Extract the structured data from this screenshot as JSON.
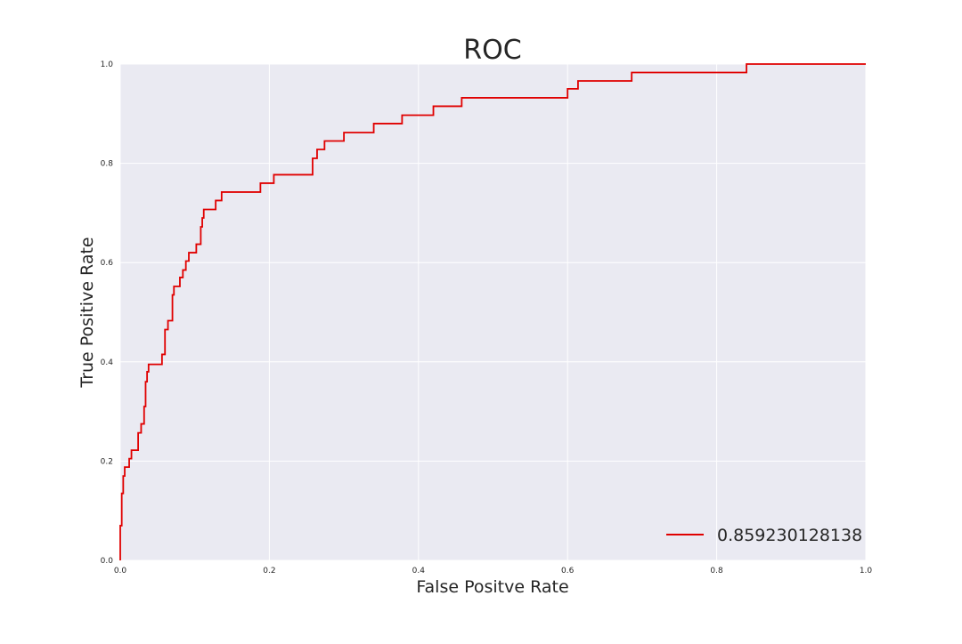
{
  "chart_data": {
    "type": "line",
    "title": "ROC",
    "xlabel": "False Positve Rate",
    "ylabel": "True Positive Rate",
    "xlim": [
      0.0,
      1.0
    ],
    "ylim": [
      0.0,
      1.0
    ],
    "xticks": [
      "0.0",
      "0.2",
      "0.4",
      "0.6",
      "0.8",
      "1.0"
    ],
    "yticks": [
      "0.0",
      "0.2",
      "0.4",
      "0.6",
      "0.8",
      "1.0"
    ],
    "grid": true,
    "legend_position": "lower right",
    "colors": {
      "background": "#eaeaf2",
      "grid": "#ffffff",
      "series": "#e00000",
      "text": "#262626"
    },
    "series": [
      {
        "name": "0.859230128138",
        "color": "#e00000",
        "x": [
          0.0,
          0.0,
          0.002,
          0.002,
          0.004,
          0.004,
          0.006,
          0.006,
          0.012,
          0.012,
          0.015,
          0.015,
          0.024,
          0.024,
          0.028,
          0.028,
          0.032,
          0.032,
          0.034,
          0.034,
          0.036,
          0.036,
          0.038,
          0.038,
          0.056,
          0.056,
          0.06,
          0.06,
          0.064,
          0.064,
          0.07,
          0.07,
          0.072,
          0.072,
          0.08,
          0.08,
          0.084,
          0.084,
          0.088,
          0.088,
          0.092,
          0.092,
          0.102,
          0.102,
          0.108,
          0.108,
          0.11,
          0.11,
          0.112,
          0.112,
          0.128,
          0.128,
          0.136,
          0.136,
          0.188,
          0.188,
          0.206,
          0.206,
          0.258,
          0.258,
          0.264,
          0.264,
          0.274,
          0.274,
          0.3,
          0.3,
          0.34,
          0.34,
          0.378,
          0.378,
          0.42,
          0.42,
          0.458,
          0.458,
          0.6,
          0.6,
          0.614,
          0.614,
          0.686,
          0.686,
          0.84,
          0.84,
          1.0
        ],
        "y": [
          0.0,
          0.07,
          0.07,
          0.135,
          0.135,
          0.17,
          0.17,
          0.188,
          0.188,
          0.205,
          0.205,
          0.222,
          0.222,
          0.257,
          0.257,
          0.275,
          0.275,
          0.31,
          0.31,
          0.36,
          0.36,
          0.38,
          0.38,
          0.395,
          0.395,
          0.415,
          0.415,
          0.465,
          0.465,
          0.483,
          0.483,
          0.535,
          0.535,
          0.552,
          0.552,
          0.57,
          0.57,
          0.585,
          0.585,
          0.603,
          0.603,
          0.62,
          0.62,
          0.637,
          0.637,
          0.672,
          0.672,
          0.69,
          0.69,
          0.707,
          0.707,
          0.725,
          0.725,
          0.742,
          0.742,
          0.76,
          0.76,
          0.777,
          0.777,
          0.81,
          0.81,
          0.828,
          0.828,
          0.845,
          0.845,
          0.862,
          0.862,
          0.88,
          0.88,
          0.897,
          0.897,
          0.915,
          0.915,
          0.932,
          0.932,
          0.95,
          0.95,
          0.966,
          0.966,
          0.983,
          0.983,
          1.0,
          1.0
        ]
      }
    ]
  }
}
